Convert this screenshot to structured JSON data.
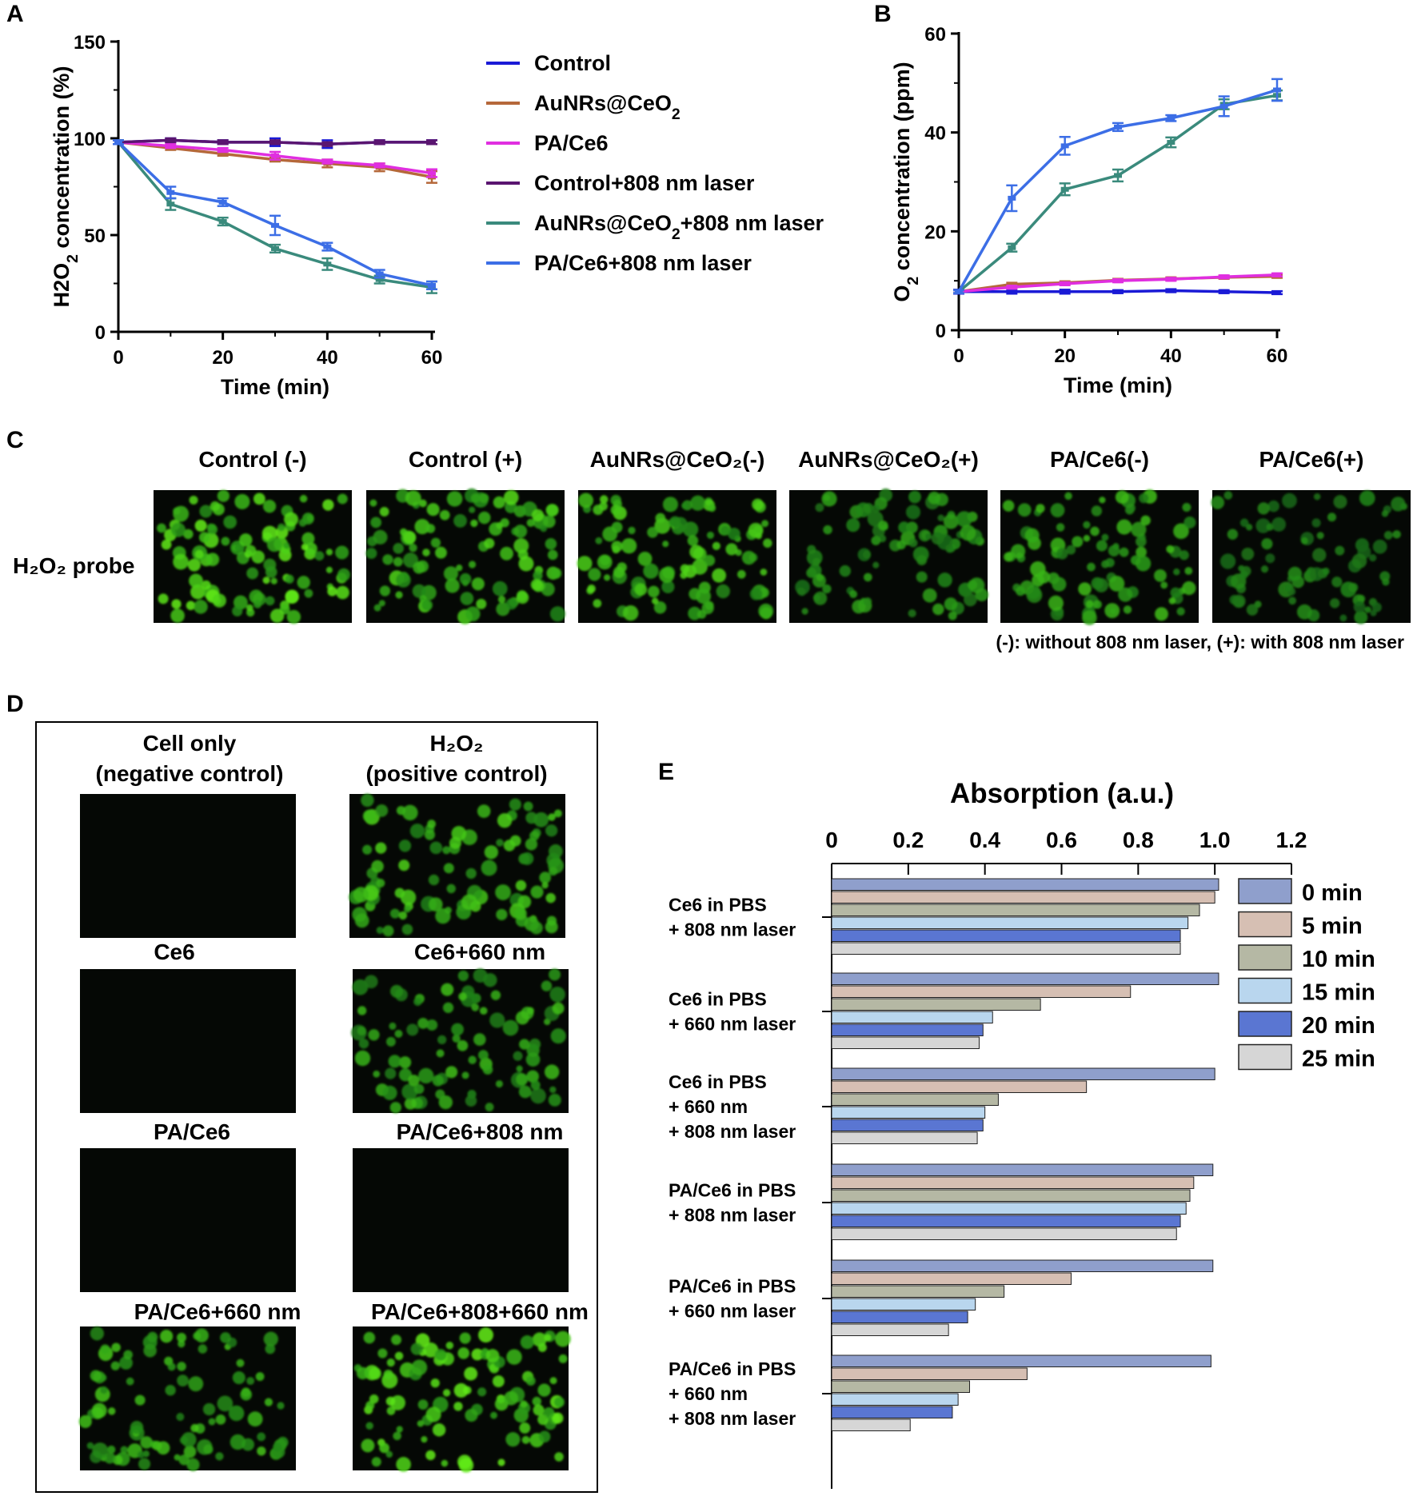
{
  "panels": {
    "a": "A",
    "b": "B",
    "c": "C",
    "d": "D",
    "e": "E"
  },
  "chart_data": [
    {
      "type": "line",
      "panel": "A",
      "xlabel": "Time (min)",
      "ylabel": "H2O2 concentration (%)",
      "xlim": [
        0,
        60
      ],
      "ylim": [
        0,
        150
      ],
      "xticks": [
        0,
        20,
        40,
        60
      ],
      "yticks": [
        0,
        50,
        100,
        150
      ],
      "x": [
        0,
        10,
        20,
        30,
        40,
        50,
        60
      ],
      "legend_position": "right",
      "series": [
        {
          "name": "Control",
          "color": "#1a1ad6",
          "values": [
            98,
            99,
            98,
            98,
            97,
            98,
            98
          ],
          "err": [
            1,
            1,
            1,
            2,
            2,
            1,
            1
          ]
        },
        {
          "name": "AuNRs@CeO2",
          "color": "#b5683a",
          "values": [
            98,
            95,
            92,
            89,
            87,
            85,
            80
          ],
          "err": [
            1,
            1,
            1,
            1,
            2,
            2,
            3
          ]
        },
        {
          "name": "PA/Ce6",
          "color": "#e02ee0",
          "values": [
            98,
            96,
            94,
            91,
            88,
            86,
            82
          ],
          "err": [
            1,
            1,
            1,
            2,
            1,
            1,
            2
          ]
        },
        {
          "name": "Control+808 nm laser",
          "color": "#5a1570",
          "values": [
            98,
            99,
            98,
            98,
            97,
            98,
            98
          ],
          "err": [
            1,
            1,
            1,
            1,
            1,
            1,
            1
          ]
        },
        {
          "name": "AuNRs@CeO2+808 nm laser",
          "color": "#3a8a7c",
          "values": [
            98,
            66,
            57,
            43,
            35,
            27,
            23
          ],
          "err": [
            1,
            3,
            2,
            2,
            3,
            2,
            3
          ]
        },
        {
          "name": "PA/Ce6+808 nm laser",
          "color": "#3c6ee6",
          "values": [
            98,
            72,
            67,
            55,
            44,
            30,
            24
          ],
          "err": [
            1,
            3,
            2,
            5,
            2,
            2,
            2
          ]
        }
      ]
    },
    {
      "type": "line",
      "panel": "B",
      "xlabel": "Time (min)",
      "ylabel": "O2 concentration (ppm)",
      "xlim": [
        0,
        60
      ],
      "ylim": [
        0,
        60
      ],
      "xticks": [
        0,
        20,
        40,
        60
      ],
      "yticks": [
        0,
        20,
        40,
        60
      ],
      "x": [
        0,
        10,
        20,
        30,
        40,
        50,
        60
      ],
      "series": [
        {
          "name": "Control",
          "color": "#1a1ad6",
          "values": [
            7.8,
            7.8,
            7.8,
            7.8,
            8.0,
            7.8,
            7.6
          ],
          "err": [
            0.4,
            0.4,
            0.4,
            0.3,
            0.3,
            0.3,
            0.3
          ]
        },
        {
          "name": "AuNRs@CeO2",
          "color": "#b5683a",
          "values": [
            7.8,
            9.3,
            9.6,
            10.1,
            10.4,
            10.7,
            10.9
          ],
          "err": [
            0.3,
            0.3,
            0.3,
            0.3,
            0.3,
            0.3,
            0.3
          ]
        },
        {
          "name": "PA/Ce6",
          "color": "#e02ee0",
          "values": [
            7.8,
            8.7,
            9.4,
            10.0,
            10.3,
            10.8,
            11.2
          ],
          "err": [
            0.3,
            0.3,
            0.3,
            0.3,
            0.3,
            0.3,
            0.3
          ]
        },
        {
          "name": "AuNRs@CeO2+808 nm laser",
          "color": "#3a8a7c",
          "values": [
            7.8,
            16.7,
            28.5,
            31.3,
            38.0,
            45.7,
            47.5
          ],
          "err": [
            0.3,
            0.8,
            1.2,
            1.2,
            1.0,
            1.0,
            1.0
          ]
        },
        {
          "name": "PA/Ce6+808 nm laser",
          "color": "#3c6ee6",
          "values": [
            7.8,
            26.7,
            37.3,
            41.1,
            42.9,
            45.3,
            48.6
          ],
          "err": [
            0.3,
            2.6,
            1.8,
            0.8,
            0.6,
            2.0,
            2.2
          ]
        }
      ]
    },
    {
      "type": "bar",
      "panel": "E",
      "orientation": "horizontal",
      "title": "Absorption (a.u.)",
      "xlim": [
        0,
        1.2
      ],
      "xticks": [
        "0",
        "0.2",
        "0.4",
        "0.6",
        "0.8",
        "1.0",
        "1.2"
      ],
      "legend_position": "right",
      "groups": [
        [
          "Ce6 in PBS",
          "+ 808 nm laser"
        ],
        [
          "Ce6 in PBS",
          "+ 660 nm laser"
        ],
        [
          "Ce6 in PBS",
          "+ 660 nm",
          "+ 808 nm laser"
        ],
        [
          "PA/Ce6 in PBS",
          "+ 808 nm laser"
        ],
        [
          "PA/Ce6 in PBS",
          "+ 660 nm laser"
        ],
        [
          "PA/Ce6 in PBS",
          "+ 660 nm",
          "+ 808 nm laser"
        ]
      ],
      "series": [
        {
          "name": "0  min",
          "color": "#8f9fcc",
          "values": [
            1.01,
            1.01,
            1.0,
            0.995,
            0.995,
            0.99
          ]
        },
        {
          "name": "5  min",
          "color": "#d6bfb3",
          "values": [
            1.0,
            0.78,
            0.665,
            0.945,
            0.625,
            0.51
          ]
        },
        {
          "name": "10  min",
          "color": "#b5b8a4",
          "values": [
            0.96,
            0.545,
            0.435,
            0.935,
            0.45,
            0.36
          ]
        },
        {
          "name": "15  min",
          "color": "#b9d6ee",
          "values": [
            0.93,
            0.42,
            0.4,
            0.925,
            0.375,
            0.33
          ]
        },
        {
          "name": "20  min",
          "color": "#5a76d2",
          "values": [
            0.91,
            0.395,
            0.395,
            0.91,
            0.355,
            0.315
          ]
        },
        {
          "name": "25  min",
          "color": "#d6d6d6",
          "values": [
            0.91,
            0.385,
            0.38,
            0.9,
            0.305,
            0.205
          ]
        }
      ]
    }
  ],
  "panel_c": {
    "columns": [
      "Control (-)",
      "Control (+)",
      "AuNRs@CeO₂(-)",
      "AuNRs@CeO₂(+)",
      "PA/Ce6(-)",
      "PA/Ce6(+)"
    ],
    "row_label": "H₂O₂ probe",
    "intensity": [
      0.95,
      0.85,
      0.85,
      0.6,
      0.7,
      0.45
    ],
    "note": "(-): without 808 nm laser, (+): with 808 nm laser"
  },
  "panel_d": {
    "cells": [
      {
        "title": [
          "Cell only",
          "(negative control)"
        ],
        "intensity": 0
      },
      {
        "title": [
          "H₂O₂",
          "(positive control)"
        ],
        "intensity": 0.8
      },
      {
        "title": [
          "Ce6"
        ],
        "intensity": 0
      },
      {
        "title": [
          "Ce6+660 nm"
        ],
        "intensity": 0.7
      },
      {
        "title": [
          "PA/Ce6"
        ],
        "intensity": 0
      },
      {
        "title": [
          "PA/Ce6+808 nm"
        ],
        "intensity": 0
      },
      {
        "title": [
          "PA/Ce6+660 nm"
        ],
        "intensity": 0.75
      },
      {
        "title": [
          "PA/Ce6+808+660 nm"
        ],
        "intensity": 0.95
      }
    ]
  }
}
